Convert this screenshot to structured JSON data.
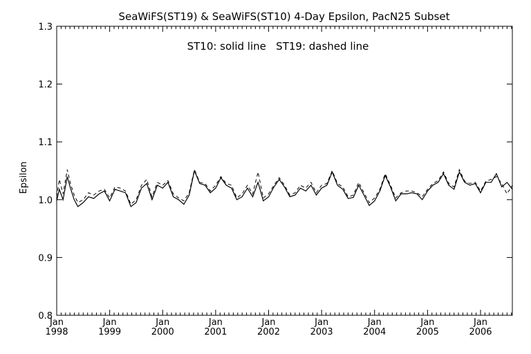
{
  "chart_data": {
    "type": "line",
    "title": "SeaWiFS(ST19) & SeaWiFS(ST10) 4-Day Epsilon, PacN25 Subset",
    "annotation": "ST10: solid line   ST19: dashed line",
    "xlabel": "",
    "ylabel": "Epsilon",
    "xlim": [
      1998.0,
      2006.6
    ],
    "ylim": [
      0.8,
      1.3
    ],
    "grid": false,
    "legend": "none",
    "x_ticks": [
      {
        "value": 1998,
        "month": "Jan",
        "year": "1998"
      },
      {
        "value": 1999,
        "month": "Jan",
        "year": "1999"
      },
      {
        "value": 2000,
        "month": "Jan",
        "year": "2000"
      },
      {
        "value": 2001,
        "month": "Jan",
        "year": "2001"
      },
      {
        "value": 2002,
        "month": "Jan",
        "year": "2002"
      },
      {
        "value": 2003,
        "month": "Jan",
        "year": "2003"
      },
      {
        "value": 2004,
        "month": "Jan",
        "year": "2004"
      },
      {
        "value": 2005,
        "month": "Jan",
        "year": "2005"
      },
      {
        "value": 2006,
        "month": "Jan",
        "year": "2006"
      }
    ],
    "y_ticks": [
      {
        "value": 0.8,
        "label": "0.8"
      },
      {
        "value": 0.9,
        "label": "0.9"
      },
      {
        "value": 1.0,
        "label": "1.0"
      },
      {
        "value": 1.1,
        "label": "1.1"
      },
      {
        "value": 1.2,
        "label": "1.2"
      },
      {
        "value": 1.3,
        "label": "1.3"
      }
    ],
    "series": [
      {
        "style": "solid",
        "x": [
          1998.0,
          1998.05,
          1998.12,
          1998.2,
          1998.26,
          1998.33,
          1998.4,
          1998.5,
          1998.6,
          1998.7,
          1998.8,
          1998.9,
          1999.0,
          1999.1,
          1999.2,
          1999.3,
          1999.4,
          1999.5,
          1999.6,
          1999.7,
          1999.8,
          1999.9,
          2000.0,
          2000.1,
          2000.2,
          2000.3,
          2000.4,
          2000.5,
          2000.6,
          2000.7,
          2000.8,
          2000.9,
          2001.0,
          2001.1,
          2001.2,
          2001.3,
          2001.4,
          2001.5,
          2001.6,
          2001.7,
          2001.8,
          2001.9,
          2002.0,
          2002.1,
          2002.2,
          2002.3,
          2002.4,
          2002.5,
          2002.6,
          2002.7,
          2002.8,
          2002.9,
          2003.0,
          2003.1,
          2003.2,
          2003.3,
          2003.4,
          2003.5,
          2003.6,
          2003.7,
          2003.8,
          2003.9,
          2004.0,
          2004.1,
          2004.2,
          2004.3,
          2004.4,
          2004.5,
          2004.6,
          2004.7,
          2004.8,
          2004.9,
          2005.0,
          2005.1,
          2005.2,
          2005.3,
          2005.4,
          2005.5,
          2005.6,
          2005.7,
          2005.8,
          2005.9,
          2006.0,
          2006.1,
          2006.2,
          2006.3,
          2006.4,
          2006.5,
          2006.6
        ],
        "y": [
          0.998,
          1.018,
          1.0,
          1.04,
          1.02,
          1.0,
          0.988,
          0.995,
          1.005,
          1.002,
          1.01,
          1.015,
          0.998,
          1.018,
          1.015,
          1.012,
          0.988,
          0.995,
          1.02,
          1.028,
          1.0,
          1.025,
          1.02,
          1.03,
          1.005,
          1.0,
          0.992,
          1.008,
          1.05,
          1.028,
          1.025,
          1.012,
          1.02,
          1.038,
          1.025,
          1.02,
          1.0,
          1.005,
          1.02,
          1.005,
          1.03,
          0.998,
          1.005,
          1.022,
          1.035,
          1.022,
          1.005,
          1.008,
          1.02,
          1.015,
          1.025,
          1.008,
          1.02,
          1.025,
          1.048,
          1.025,
          1.018,
          1.002,
          1.004,
          1.025,
          1.008,
          0.99,
          0.998,
          1.015,
          1.042,
          1.022,
          0.998,
          1.01,
          1.01,
          1.012,
          1.01,
          1.0,
          1.015,
          1.025,
          1.03,
          1.045,
          1.025,
          1.018,
          1.048,
          1.03,
          1.025,
          1.028,
          1.012,
          1.03,
          1.03,
          1.045,
          1.022,
          1.03,
          1.018
        ]
      },
      {
        "style": "dashed",
        "x": [
          1998.0,
          1998.05,
          1998.12,
          1998.2,
          1998.26,
          1998.33,
          1998.4,
          1998.5,
          1998.6,
          1998.7,
          1998.8,
          1998.9,
          1999.0,
          1999.1,
          1999.2,
          1999.3,
          1999.4,
          1999.5,
          1999.6,
          1999.7,
          1999.8,
          1999.9,
          2000.0,
          2000.1,
          2000.2,
          2000.3,
          2000.4,
          2000.5,
          2000.6,
          2000.7,
          2000.8,
          2000.9,
          2001.0,
          2001.1,
          2001.2,
          2001.3,
          2001.4,
          2001.5,
          2001.6,
          2001.7,
          2001.8,
          2001.9,
          2002.0,
          2002.1,
          2002.2,
          2002.3,
          2002.4,
          2002.5,
          2002.6,
          2002.7,
          2002.8,
          2002.9,
          2003.0,
          2003.1,
          2003.2,
          2003.3,
          2003.4,
          2003.5,
          2003.6,
          2003.7,
          2003.8,
          2003.9,
          2004.0,
          2004.1,
          2004.2,
          2004.3,
          2004.4,
          2004.5,
          2004.6,
          2004.7,
          2004.8,
          2004.9,
          2005.0,
          2005.1,
          2005.2,
          2005.3,
          2005.4,
          2005.5,
          2005.6,
          2005.7,
          2005.8,
          2005.9,
          2006.0,
          2006.1,
          2006.2,
          2006.3,
          2006.4,
          2006.5,
          2006.6
        ],
        "y": [
          1.005,
          1.035,
          1.01,
          1.052,
          1.028,
          1.008,
          0.995,
          1.0,
          1.012,
          1.008,
          1.015,
          1.018,
          1.003,
          1.022,
          1.02,
          1.015,
          0.992,
          1.0,
          1.025,
          1.035,
          1.005,
          1.03,
          1.025,
          1.033,
          1.01,
          1.003,
          0.998,
          1.012,
          1.052,
          1.03,
          1.028,
          1.015,
          1.025,
          1.04,
          1.028,
          1.025,
          1.003,
          1.01,
          1.025,
          1.01,
          1.048,
          1.003,
          1.01,
          1.025,
          1.038,
          1.025,
          1.008,
          1.012,
          1.025,
          1.02,
          1.03,
          1.012,
          1.025,
          1.028,
          1.05,
          1.028,
          1.022,
          1.005,
          1.008,
          1.03,
          1.012,
          0.995,
          1.003,
          1.018,
          1.045,
          1.025,
          1.003,
          1.012,
          1.015,
          1.015,
          1.012,
          1.005,
          1.018,
          1.028,
          1.033,
          1.048,
          1.028,
          1.022,
          1.052,
          1.032,
          1.028,
          1.03,
          1.015,
          1.032,
          1.035,
          1.04,
          1.028,
          1.01,
          1.025
        ]
      }
    ]
  }
}
